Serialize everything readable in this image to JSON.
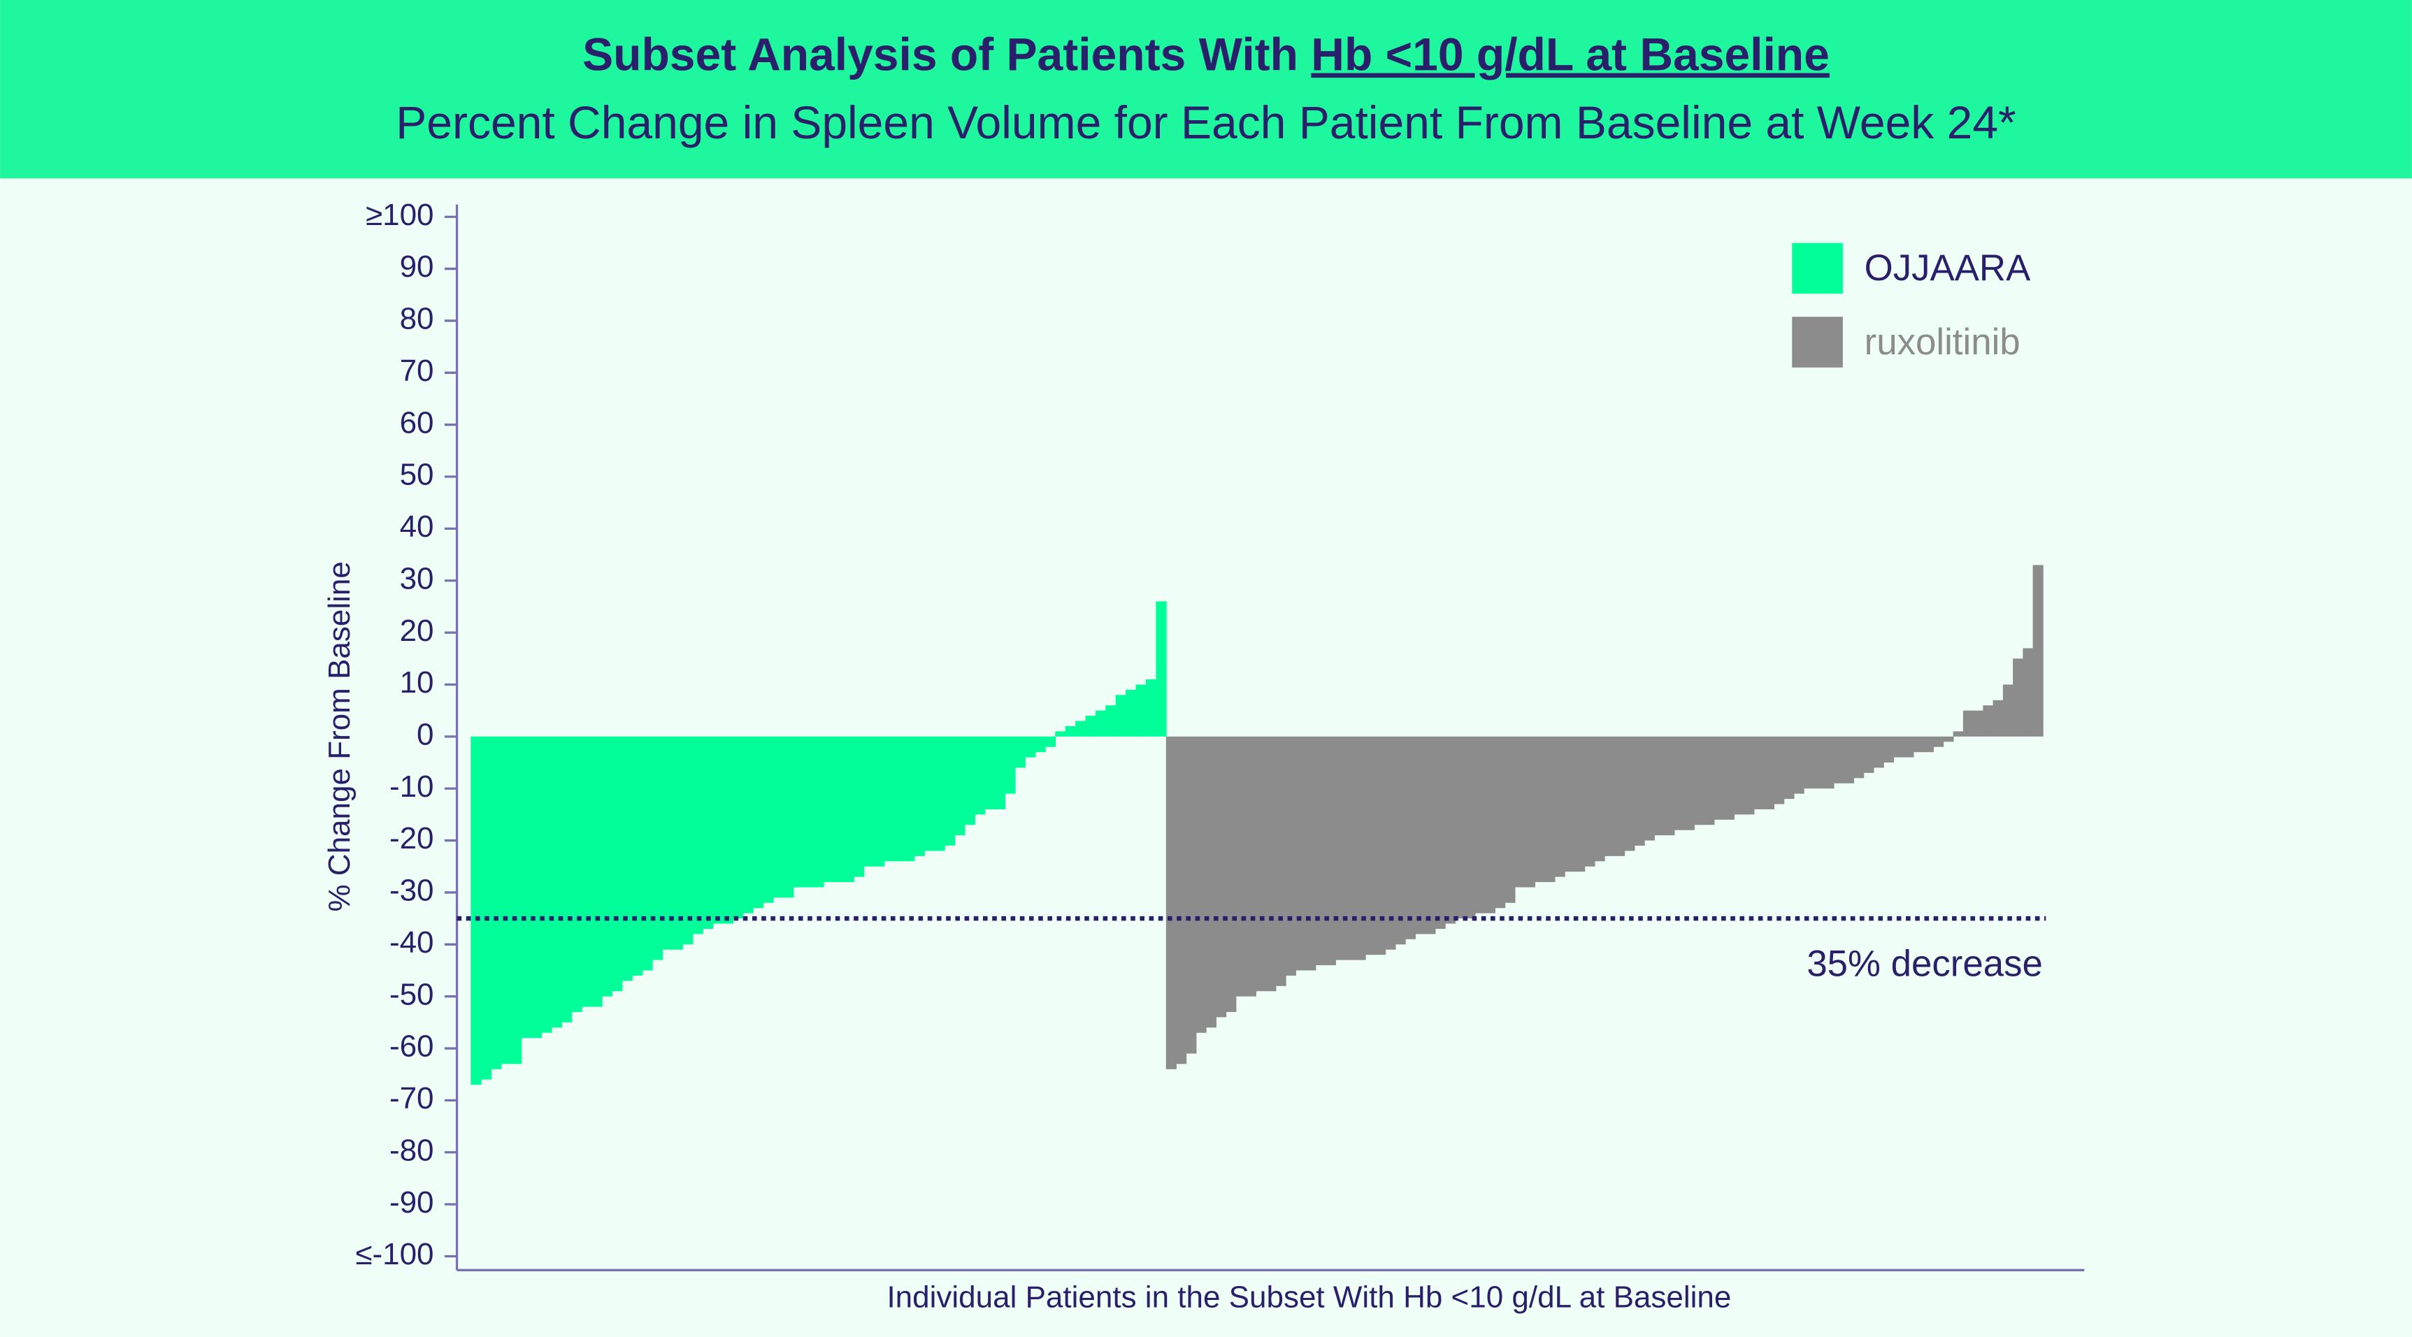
{
  "chart_data": {
    "type": "waterfall",
    "title": "Subset Analysis of Patients With",
    "title_emphasis": "Hb <10 g/dL at Baseline",
    "subtitle": "Percent Change in Spleen Volume for Each Patient From Baseline at Week 24*",
    "y_label": "% Change From Baseline",
    "x_label": "Individual Patients in the Subset With Hb <10 g/dL at Baseline",
    "ylim": [
      -100,
      100
    ],
    "yticks": [
      {
        "value": 100,
        "label": "≥100"
      },
      90,
      80,
      70,
      60,
      50,
      40,
      30,
      20,
      10,
      0,
      -10,
      -20,
      -30,
      -40,
      -50,
      -60,
      -70,
      -80,
      -90,
      {
        "value": -100,
        "label": "≤-100"
      }
    ],
    "legend": "top-right",
    "reference_line": {
      "value": -35,
      "label": "35% decrease",
      "color": "#2a1f6b"
    },
    "series": [
      {
        "name": "OJJAARA",
        "color": "#00ff99",
        "values": [
          -67,
          -66,
          -64,
          -63,
          -63,
          -58,
          -58,
          -57,
          -56,
          -55,
          -53,
          -52,
          -52,
          -50,
          -49,
          -47,
          -46,
          -45,
          -43,
          -41,
          -41,
          -40,
          -38,
          -37,
          -36,
          -36,
          -35,
          -34,
          -33,
          -32,
          -31,
          -31,
          -29,
          -29,
          -29,
          -28,
          -28,
          -28,
          -27,
          -25,
          -25,
          -24,
          -24,
          -24,
          -23,
          -22,
          -22,
          -21,
          -19,
          -17,
          -15,
          -14,
          -14,
          -11,
          -6,
          -4,
          -3,
          -2,
          1,
          2,
          3,
          4,
          5,
          6,
          8,
          9,
          10,
          11,
          26
        ]
      },
      {
        "name": "ruxolitinib",
        "color": "#8c8c8c",
        "values": [
          -64,
          -63,
          -61,
          -57,
          -56,
          -54,
          -53,
          -50,
          -50,
          -49,
          -49,
          -48,
          -46,
          -45,
          -45,
          -44,
          -44,
          -43,
          -43,
          -43,
          -42,
          -42,
          -41,
          -40,
          -39,
          -38,
          -38,
          -37,
          -36,
          -35,
          -35,
          -34,
          -34,
          -33,
          -32,
          -29,
          -29,
          -28,
          -28,
          -27,
          -26,
          -26,
          -25,
          -24,
          -23,
          -23,
          -22,
          -21,
          -20,
          -19,
          -19,
          -18,
          -18,
          -17,
          -17,
          -16,
          -16,
          -15,
          -15,
          -14,
          -14,
          -13,
          -12,
          -11,
          -10,
          -10,
          -10,
          -9,
          -9,
          -8,
          -7,
          -6,
          -5,
          -4,
          -4,
          -3,
          -3,
          -2,
          -1,
          1,
          5,
          5,
          6,
          7,
          10,
          15,
          17,
          33
        ]
      }
    ]
  }
}
